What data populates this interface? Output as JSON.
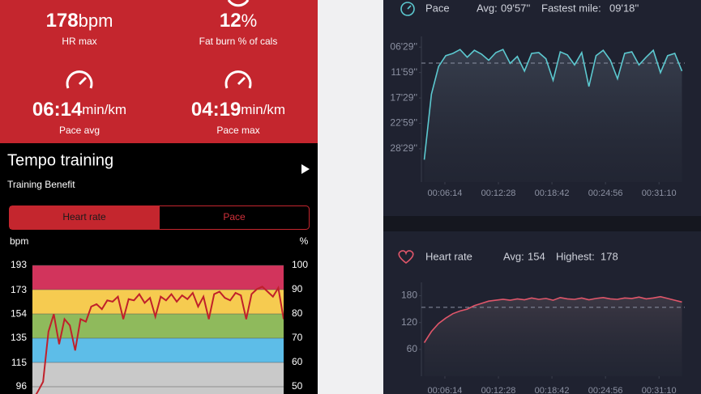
{
  "summary": {
    "items": [
      {
        "value": 178,
        "unit": "bpm",
        "label": "HR max"
      },
      {
        "value": 12,
        "unit": "%",
        "label": "Fat burn % of cals"
      },
      {
        "value": "06:14",
        "unit": "min/km",
        "label": "Pace avg"
      },
      {
        "value": "04:19",
        "unit": "min/km",
        "label": "Pace max"
      }
    ]
  },
  "workout": {
    "title": "Tempo training",
    "subtitle": "Training Benefit",
    "tabs": [
      "Heart rate",
      "Pace"
    ],
    "selected_tab": 0
  },
  "chart_data": [
    {
      "type": "line",
      "y_label": "bpm",
      "y2_label": "%",
      "color": "#c0202a",
      "ylim": [
        96,
        193
      ],
      "yticks": [
        96,
        115,
        135,
        154,
        173,
        193
      ],
      "y2lim": [
        50,
        100
      ],
      "y2ticks": [
        50,
        60,
        70,
        80,
        90,
        100
      ],
      "zone_colors": [
        "#c9c9c9",
        "#5dbde8",
        "#8fba5c",
        "#f6cb50",
        "#d2345c"
      ],
      "values": [
        85,
        92,
        100,
        140,
        154,
        130,
        150,
        145,
        125,
        150,
        148,
        160,
        162,
        158,
        165,
        164,
        168,
        150,
        166,
        165,
        170,
        163,
        167,
        152,
        168,
        165,
        170,
        164,
        169,
        166,
        171,
        160,
        168,
        150,
        170,
        172,
        167,
        165,
        171,
        169,
        150,
        170,
        174,
        176,
        172,
        168,
        175,
        150
      ]
    },
    {
      "type": "line",
      "title": "Pace",
      "avg_label": "Avg:",
      "avg": {
        "value": 597,
        "label": "09'57''"
      },
      "best_label": "Fastest mile:",
      "best": "09'18''",
      "color": "#5cc9d0",
      "ylim": [
        2140,
        250
      ],
      "yticks": [
        {
          "value": 389,
          "label": "06'29''"
        },
        {
          "value": 719,
          "label": "11'59''"
        },
        {
          "value": 1049,
          "label": "17'29''"
        },
        {
          "value": 1379,
          "label": "22'59''"
        },
        {
          "value": 1709,
          "label": "28'29''"
        }
      ],
      "xlim": [
        210,
        2050
      ],
      "xticks": [
        {
          "value": 374,
          "label": "00:06:14"
        },
        {
          "value": 748,
          "label": "00:12:28"
        },
        {
          "value": 1122,
          "label": "00:18:42"
        },
        {
          "value": 1496,
          "label": "00:24:56"
        },
        {
          "value": 1870,
          "label": "00:31:10"
        }
      ],
      "x": [
        230,
        280,
        330,
        380,
        430,
        480,
        530,
        580,
        630,
        680,
        730,
        780,
        830,
        880,
        930,
        980,
        1030,
        1080,
        1130,
        1180,
        1230,
        1280,
        1330,
        1380,
        1430,
        1480,
        1530,
        1580,
        1630,
        1680,
        1730,
        1780,
        1830,
        1880,
        1930,
        1980,
        2030
      ],
      "values": [
        1850,
        1000,
        640,
        500,
        470,
        420,
        520,
        430,
        480,
        560,
        460,
        420,
        600,
        510,
        700,
        470,
        460,
        540,
        820,
        450,
        490,
        620,
        460,
        900,
        500,
        430,
        560,
        800,
        470,
        450,
        620,
        520,
        430,
        720,
        500,
        470,
        700
      ]
    },
    {
      "type": "line",
      "title": "Heart rate",
      "avg_label": "Avg:",
      "avg": 154,
      "max_label": "Highest:",
      "max": 178,
      "color": "#e0566a",
      "ylim": [
        0,
        210
      ],
      "yticks": [
        60,
        120,
        180
      ],
      "xlim": [
        210,
        2050
      ],
      "xticks": [
        {
          "value": 374,
          "label": "00:06:14"
        },
        {
          "value": 748,
          "label": "00:12:28"
        },
        {
          "value": 1122,
          "label": "00:18:42"
        },
        {
          "value": 1496,
          "label": "00:24:56"
        },
        {
          "value": 1870,
          "label": "00:31:10"
        }
      ],
      "x": [
        230,
        280,
        330,
        380,
        430,
        480,
        530,
        580,
        630,
        680,
        730,
        780,
        830,
        880,
        930,
        980,
        1030,
        1080,
        1130,
        1180,
        1230,
        1280,
        1330,
        1380,
        1430,
        1480,
        1530,
        1580,
        1630,
        1680,
        1730,
        1780,
        1830,
        1880,
        1930,
        1980,
        2030
      ],
      "values": [
        75,
        100,
        118,
        130,
        140,
        146,
        150,
        158,
        163,
        168,
        170,
        172,
        170,
        173,
        171,
        175,
        172,
        174,
        170,
        176,
        173,
        172,
        175,
        171,
        174,
        176,
        173,
        172,
        175,
        174,
        177,
        173,
        175,
        178,
        174,
        170,
        166
      ]
    }
  ]
}
